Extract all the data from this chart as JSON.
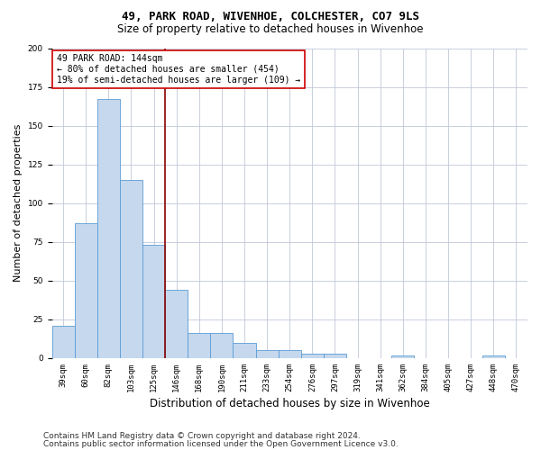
{
  "title": "49, PARK ROAD, WIVENHOE, COLCHESTER, CO7 9LS",
  "subtitle": "Size of property relative to detached houses in Wivenhoe",
  "xlabel": "Distribution of detached houses by size in Wivenhoe",
  "ylabel": "Number of detached properties",
  "categories": [
    "39sqm",
    "60sqm",
    "82sqm",
    "103sqm",
    "125sqm",
    "146sqm",
    "168sqm",
    "190sqm",
    "211sqm",
    "233sqm",
    "254sqm",
    "276sqm",
    "297sqm",
    "319sqm",
    "341sqm",
    "362sqm",
    "384sqm",
    "405sqm",
    "427sqm",
    "448sqm",
    "470sqm"
  ],
  "values": [
    21,
    87,
    167,
    115,
    73,
    44,
    16,
    16,
    10,
    5,
    5,
    3,
    3,
    0,
    0,
    2,
    0,
    0,
    0,
    2,
    0
  ],
  "bar_color": "#c5d8ed",
  "bar_edge_color": "#5b9bd5",
  "vline_index": 5,
  "vline_color": "#8b0000",
  "annotation_title": "49 PARK ROAD: 144sqm",
  "annotation_line1": "← 80% of detached houses are smaller (454)",
  "annotation_line2": "19% of semi-detached houses are larger (109) →",
  "annotation_box_color": "#ffffff",
  "annotation_box_edge": "#cc0000",
  "ylim": [
    0,
    200
  ],
  "footer1": "Contains HM Land Registry data © Crown copyright and database right 2024.",
  "footer2": "Contains public sector information licensed under the Open Government Licence v3.0.",
  "title_fontsize": 9,
  "subtitle_fontsize": 8.5,
  "tick_fontsize": 6.5,
  "ylabel_fontsize": 8,
  "xlabel_fontsize": 8.5,
  "ann_fontsize": 7,
  "footer_fontsize": 6.5
}
